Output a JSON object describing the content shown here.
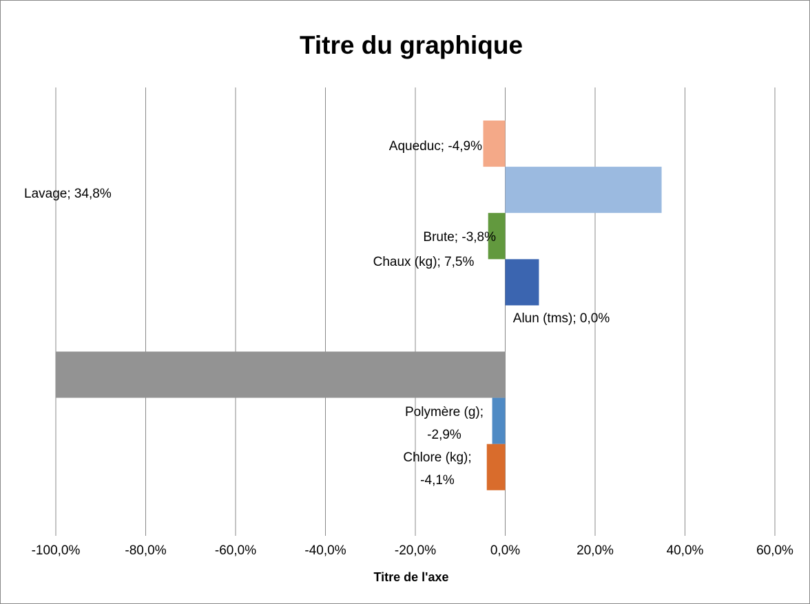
{
  "chart_data": {
    "type": "hbar",
    "title": "Titre du graphique",
    "x_label": "Titre de l'axe",
    "values": [
      -4.9,
      34.8,
      -3.8,
      7.5,
      0.0,
      -100,
      -2.9,
      -4.1
    ],
    "value_labels": [
      "Aqueduc; -4,9%",
      "Lavage; 34,8%",
      "Brute; -3,8%",
      "Chaux (kg); 7,5%",
      "Alun (tms); 0,0%",
      null,
      "Polymère (g); -2,9%",
      "Chlore (kg); -4,1%"
    ],
    "colors": [
      "#f4a988",
      "#9bbae0",
      "#62993e",
      "#3b65b0",
      "#e6e6e6",
      "#939393",
      "#4f8ac4",
      "#d96c2c"
    ],
    "xlim": [
      -100,
      60
    ],
    "xticks": [
      {
        "value": -100,
        "label": "-100,0%"
      },
      {
        "value": -80,
        "label": "-80,0%"
      },
      {
        "value": -60,
        "label": "-60,0%"
      },
      {
        "value": -40,
        "label": "-40,0%"
      },
      {
        "value": -20,
        "label": "-20,0%"
      },
      {
        "value": 0,
        "label": "0,0%"
      },
      {
        "value": 20,
        "label": "20,0%"
      },
      {
        "value": 40,
        "label": "40,0%"
      },
      {
        "value": 60,
        "label": "60,0%"
      }
    ],
    "grid": true
  }
}
